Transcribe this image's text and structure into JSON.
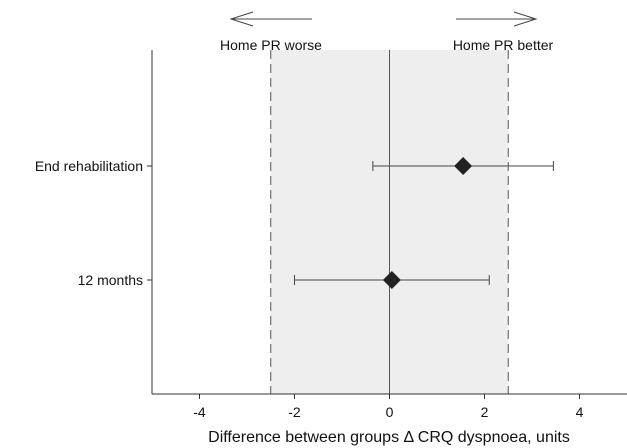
{
  "chart_data": {
    "type": "forest",
    "title": "",
    "xlabel": "Difference between groups Δ CRQ dyspnoea, units",
    "ylabel": "",
    "xlim": [
      -5,
      5
    ],
    "xticks": [
      -4,
      -2,
      0,
      2,
      4
    ],
    "grid": false,
    "shaded_region": {
      "from": -2.5,
      "to": 2.5,
      "color": "#eeeeee"
    },
    "reference_line": 0,
    "threshold_lines": [
      -2.5,
      2.5
    ],
    "direction_labels": {
      "left": "Home PR worse",
      "right": "Home PR better"
    },
    "rows": [
      {
        "label": "End rehabilitation",
        "estimate": 1.55,
        "lower": -0.35,
        "upper": 3.45
      },
      {
        "label": "12 months",
        "estimate": 0.05,
        "lower": -2.0,
        "upper": 2.1
      }
    ],
    "colors": {
      "marker": "#222222",
      "axis": "#333333",
      "dashed": "#555555"
    }
  }
}
